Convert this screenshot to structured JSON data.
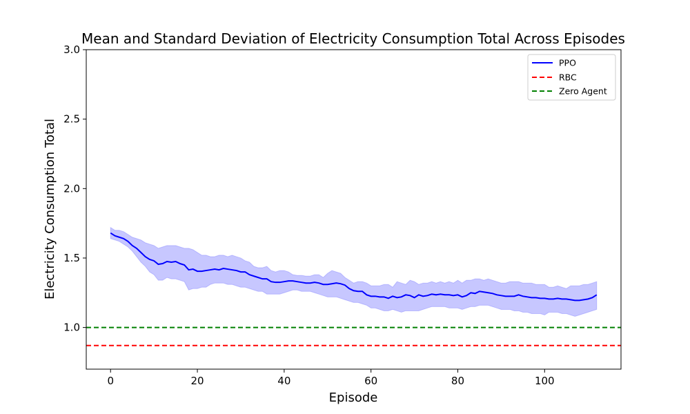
{
  "chart_data": {
    "type": "line",
    "title": "Mean and Standard Deviation of Electricity Consumption Total Across Episodes",
    "xlabel": "Episode",
    "ylabel": "Electricity Consumption Total",
    "xlim": [
      -5.6,
      117.6
    ],
    "ylim": [
      0.7,
      3.0
    ],
    "xticks": [
      0,
      20,
      40,
      60,
      80,
      100
    ],
    "yticks": [
      1.0,
      1.5,
      2.0,
      2.5,
      3.0
    ],
    "xtick_labels": [
      "0",
      "20",
      "40",
      "60",
      "80",
      "100"
    ],
    "ytick_labels": [
      "1.0",
      "1.5",
      "2.0",
      "2.5",
      "3.0"
    ],
    "grid": false,
    "legend_position": "top-right",
    "colors": {
      "ppo": "#0000ff",
      "ppo_band": "#0000ff",
      "rbc": "#ff0000",
      "zero_agent": "#008000",
      "axes": "#000000"
    },
    "series": [
      {
        "name": "PPO",
        "style": "solid",
        "x": [
          0,
          1,
          2,
          3,
          4,
          5,
          6,
          7,
          8,
          9,
          10,
          11,
          12,
          13,
          14,
          15,
          16,
          17,
          18,
          19,
          20,
          21,
          22,
          23,
          24,
          25,
          26,
          27,
          28,
          29,
          30,
          31,
          32,
          33,
          34,
          35,
          36,
          37,
          38,
          39,
          40,
          41,
          42,
          43,
          44,
          45,
          46,
          47,
          48,
          49,
          50,
          51,
          52,
          53,
          54,
          55,
          56,
          57,
          58,
          59,
          60,
          61,
          62,
          63,
          64,
          65,
          66,
          67,
          68,
          69,
          70,
          71,
          72,
          73,
          74,
          75,
          76,
          77,
          78,
          79,
          80,
          81,
          82,
          83,
          84,
          85,
          86,
          87,
          88,
          89,
          90,
          91,
          92,
          93,
          94,
          95,
          96,
          97,
          98,
          99,
          100,
          101,
          102,
          103,
          104,
          105,
          106,
          107,
          108,
          109,
          110,
          111,
          112
        ],
        "mean": [
          1.68,
          1.66,
          1.65,
          1.64,
          1.62,
          1.59,
          1.57,
          1.54,
          1.51,
          1.49,
          1.48,
          1.455,
          1.46,
          1.475,
          1.47,
          1.475,
          1.46,
          1.45,
          1.415,
          1.42,
          1.405,
          1.405,
          1.41,
          1.415,
          1.42,
          1.415,
          1.425,
          1.42,
          1.415,
          1.41,
          1.4,
          1.4,
          1.38,
          1.37,
          1.36,
          1.35,
          1.35,
          1.33,
          1.325,
          1.325,
          1.33,
          1.335,
          1.335,
          1.33,
          1.325,
          1.32,
          1.32,
          1.325,
          1.32,
          1.31,
          1.31,
          1.315,
          1.32,
          1.315,
          1.305,
          1.28,
          1.265,
          1.26,
          1.26,
          1.235,
          1.225,
          1.225,
          1.22,
          1.22,
          1.21,
          1.225,
          1.215,
          1.22,
          1.235,
          1.23,
          1.215,
          1.235,
          1.225,
          1.23,
          1.24,
          1.235,
          1.24,
          1.235,
          1.235,
          1.23,
          1.235,
          1.22,
          1.23,
          1.25,
          1.245,
          1.26,
          1.255,
          1.25,
          1.245,
          1.235,
          1.23,
          1.225,
          1.225,
          1.225,
          1.235,
          1.225,
          1.22,
          1.215,
          1.215,
          1.21,
          1.21,
          1.205,
          1.205,
          1.21,
          1.205,
          1.205,
          1.2,
          1.195,
          1.195,
          1.2,
          1.205,
          1.215,
          1.235
        ],
        "upper": [
          1.72,
          1.7,
          1.7,
          1.69,
          1.67,
          1.65,
          1.64,
          1.63,
          1.61,
          1.6,
          1.59,
          1.57,
          1.58,
          1.59,
          1.59,
          1.59,
          1.58,
          1.57,
          1.57,
          1.56,
          1.54,
          1.52,
          1.52,
          1.51,
          1.51,
          1.52,
          1.52,
          1.51,
          1.52,
          1.51,
          1.5,
          1.48,
          1.47,
          1.44,
          1.43,
          1.43,
          1.44,
          1.41,
          1.4,
          1.41,
          1.41,
          1.4,
          1.38,
          1.375,
          1.375,
          1.37,
          1.37,
          1.38,
          1.38,
          1.36,
          1.39,
          1.41,
          1.4,
          1.39,
          1.36,
          1.34,
          1.32,
          1.33,
          1.33,
          1.32,
          1.3,
          1.3,
          1.3,
          1.31,
          1.31,
          1.29,
          1.33,
          1.32,
          1.31,
          1.34,
          1.33,
          1.31,
          1.32,
          1.32,
          1.33,
          1.32,
          1.33,
          1.32,
          1.33,
          1.32,
          1.34,
          1.32,
          1.34,
          1.34,
          1.35,
          1.35,
          1.34,
          1.35,
          1.34,
          1.33,
          1.32,
          1.32,
          1.33,
          1.33,
          1.33,
          1.32,
          1.32,
          1.32,
          1.31,
          1.31,
          1.31,
          1.29,
          1.29,
          1.3,
          1.29,
          1.28,
          1.3,
          1.3,
          1.3,
          1.31,
          1.31,
          1.32,
          1.33
        ],
        "lower": [
          1.64,
          1.63,
          1.62,
          1.6,
          1.58,
          1.55,
          1.51,
          1.47,
          1.44,
          1.4,
          1.38,
          1.34,
          1.34,
          1.36,
          1.35,
          1.35,
          1.34,
          1.33,
          1.27,
          1.28,
          1.28,
          1.29,
          1.29,
          1.31,
          1.32,
          1.32,
          1.32,
          1.31,
          1.31,
          1.3,
          1.29,
          1.29,
          1.28,
          1.27,
          1.26,
          1.26,
          1.24,
          1.24,
          1.24,
          1.24,
          1.25,
          1.26,
          1.27,
          1.27,
          1.26,
          1.26,
          1.26,
          1.25,
          1.24,
          1.23,
          1.22,
          1.22,
          1.22,
          1.21,
          1.2,
          1.19,
          1.18,
          1.18,
          1.17,
          1.16,
          1.14,
          1.14,
          1.13,
          1.12,
          1.12,
          1.13,
          1.12,
          1.11,
          1.12,
          1.12,
          1.12,
          1.12,
          1.13,
          1.14,
          1.15,
          1.15,
          1.15,
          1.15,
          1.14,
          1.14,
          1.14,
          1.13,
          1.14,
          1.15,
          1.15,
          1.16,
          1.16,
          1.16,
          1.15,
          1.14,
          1.13,
          1.13,
          1.13,
          1.12,
          1.12,
          1.11,
          1.11,
          1.1,
          1.1,
          1.1,
          1.09,
          1.11,
          1.11,
          1.11,
          1.1,
          1.1,
          1.09,
          1.08,
          1.09,
          1.1,
          1.11,
          1.12,
          1.13
        ]
      },
      {
        "name": "RBC",
        "style": "dashed",
        "constant": 0.87
      },
      {
        "name": "Zero Agent",
        "style": "dashed",
        "constant": 1.0
      }
    ]
  }
}
